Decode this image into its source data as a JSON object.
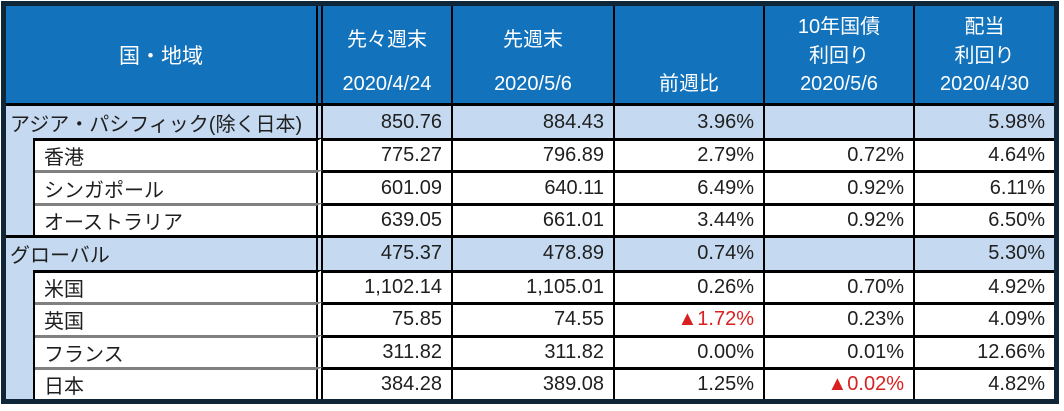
{
  "colors": {
    "header_bg": "#1272BC",
    "header_text": "#FFFFFF",
    "band_bg": "#C5DAF1",
    "frame": "#0E2638",
    "grid_black": "#000000",
    "grid_gray": "#808080",
    "text": "#1F1F1F",
    "negative": "#D92020"
  },
  "chart_data": {
    "type": "table",
    "header": {
      "region_label": "国・地域",
      "columns": [
        {
          "lines": [
            "先々週末",
            "2020/4/24"
          ]
        },
        {
          "lines": [
            "先週末",
            "2020/5/6"
          ]
        },
        {
          "lines": [
            "前週比"
          ]
        },
        {
          "lines": [
            "10年国債",
            "利回り",
            "2020/5/6"
          ]
        },
        {
          "lines": [
            "配当",
            "利回り",
            "2020/4/30"
          ]
        }
      ],
      "flat_column_titles": [
        "国・地域",
        "先々週末 2020/4/24",
        "先週末 2020/5/6",
        "前週比",
        "10年国債利回り 2020/5/6",
        "配当利回り 2020/4/30"
      ]
    },
    "rows": [
      {
        "level": 0,
        "name": "アジア・パシフィック(除く日本)",
        "values": [
          "850.76",
          "884.43",
          "3.96%",
          "",
          "5.98%"
        ]
      },
      {
        "level": 1,
        "name": "香港",
        "values": [
          "775.27",
          "796.89",
          "2.79%",
          "0.72%",
          "4.64%"
        ]
      },
      {
        "level": 1,
        "name": "シンガポール",
        "values": [
          "601.09",
          "640.11",
          "6.49%",
          "0.92%",
          "6.11%"
        ]
      },
      {
        "level": 1,
        "name": "オーストラリア",
        "values": [
          "639.05",
          "661.01",
          "3.44%",
          "0.92%",
          "6.50%"
        ]
      },
      {
        "level": 0,
        "name": "グローバル",
        "values": [
          "475.37",
          "478.89",
          "0.74%",
          "",
          "5.30%"
        ]
      },
      {
        "level": 1,
        "name": "米国",
        "values": [
          "1,102.14",
          "1,105.01",
          "0.26%",
          "0.70%",
          "4.92%"
        ]
      },
      {
        "level": 1,
        "name": "英国",
        "values": [
          "75.85",
          "74.55",
          "▲1.72%",
          "0.23%",
          "4.09%"
        ]
      },
      {
        "level": 1,
        "name": "フランス",
        "values": [
          "311.82",
          "311.82",
          "0.00%",
          "0.01%",
          "12.66%"
        ]
      },
      {
        "level": 1,
        "name": "日本",
        "values": [
          "384.28",
          "389.08",
          "1.25%",
          "▲0.02%",
          "4.82%"
        ]
      }
    ],
    "negative_marker": "▲"
  }
}
